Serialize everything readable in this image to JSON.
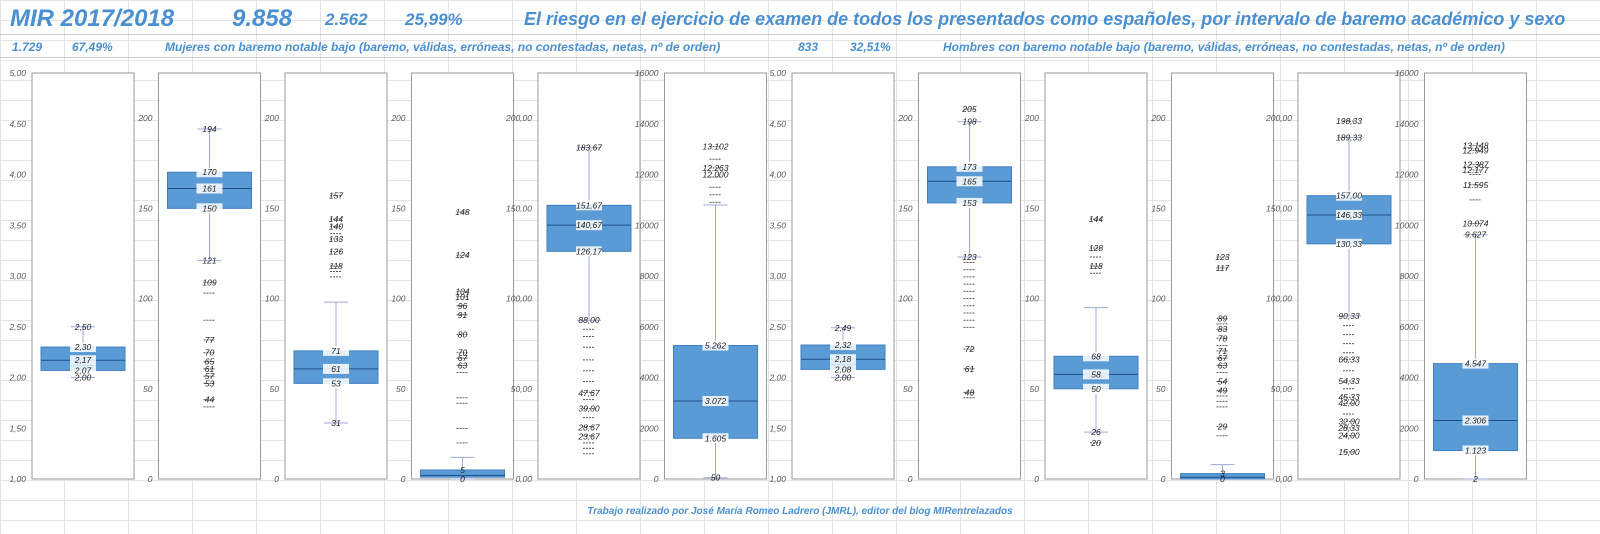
{
  "header": {
    "exam": "MIR 2017/2018",
    "total": "9.858",
    "count": "2.562",
    "percent": "25,99%",
    "title": "El riesgo en el ejercicio de examen de todos los presentados como españoles, por intervalo de baremo académico y sexo"
  },
  "women": {
    "count": "1.729",
    "percent": "67,49%",
    "subtitle": "Mujeres con baremo notable bajo (baremo, válidas, erróneas, no contestadas, netas, nº de orden)"
  },
  "men": {
    "count": "833",
    "percent": "32,51%",
    "subtitle": "Hombres con baremo notable bajo (baremo, válidas, erróneas, no contestadas, netas, nº de orden)"
  },
  "footer": "Trabajo realizado por José María Romeo Ladrero (JMRL), editor del blog MIRentrelazados",
  "colors": {
    "box": "#5b9bd5",
    "title": "#4a8fd0"
  },
  "chart_data": [
    {
      "type": "box",
      "group": "Mujeres",
      "ylim": [
        1,
        5
      ],
      "yticks": [
        "1,00",
        "1,50",
        "2,00",
        "2,50",
        "3,00",
        "3,50",
        "4,00",
        "4,50",
        "5,00"
      ],
      "q1": 2.07,
      "median": 2.17,
      "q3": 2.3,
      "whisker_low": 2.0,
      "whisker_high": 2.5,
      "labels": [
        "2,50",
        "2,30",
        "2,17",
        "2,07",
        "2,00"
      ],
      "outliers": []
    },
    {
      "type": "box",
      "group": "Mujeres",
      "ylim": [
        0,
        225
      ],
      "yticks": [
        "0",
        "50",
        "100",
        "150",
        "200"
      ],
      "q1": 150,
      "median": 161,
      "q3": 170,
      "whisker_low": 121,
      "whisker_high": 194,
      "labels": [
        "194",
        "170",
        "161",
        "150",
        "121",
        "109",
        "77",
        "70",
        "65",
        "61",
        "57",
        "53",
        "44"
      ],
      "outliers": [
        109,
        103,
        88,
        77,
        70,
        65,
        61,
        57,
        53,
        44,
        40
      ]
    },
    {
      "type": "box",
      "group": "Mujeres",
      "ylim": [
        0,
        225
      ],
      "yticks": [
        "0",
        "50",
        "100",
        "150",
        "200"
      ],
      "q1": 53,
      "median": 61,
      "q3": 71,
      "whisker_low": 31,
      "whisker_high": 98,
      "labels": [
        "157",
        "144",
        "140",
        "133",
        "126",
        "118",
        "71",
        "61",
        "53",
        "31"
      ],
      "outliers": [
        157,
        144,
        140,
        136,
        133,
        126,
        118,
        115,
        112
      ]
    },
    {
      "type": "box",
      "group": "Mujeres",
      "ylim": [
        0,
        225
      ],
      "yticks": [
        "0",
        "50",
        "100",
        "150",
        "200"
      ],
      "q1": 1,
      "median": 2,
      "q3": 5,
      "whisker_low": 0,
      "whisker_high": 12,
      "labels": [
        "148",
        "124",
        "104",
        "101",
        "96",
        "91",
        "80",
        "70",
        "67",
        "63",
        "5",
        "0"
      ],
      "outliers": [
        148,
        124,
        104,
        101,
        96,
        91,
        80,
        70,
        67,
        63,
        59,
        45,
        42,
        28,
        20
      ]
    },
    {
      "type": "box",
      "group": "Mujeres",
      "ylim": [
        0,
        225
      ],
      "yticks": [
        "0,00",
        "50,00",
        "100,00",
        "150,00",
        "200,00"
      ],
      "q1": 126.17,
      "median": 140.67,
      "q3": 151.67,
      "whisker_low": 88,
      "whisker_high": 183.67,
      "labels": [
        "183,67",
        "151,67",
        "140,67",
        "126,17",
        "88,00",
        "47,67",
        "39,00",
        "28,67",
        "23,67"
      ],
      "outliers": [
        83,
        79,
        73,
        66,
        60,
        54,
        48,
        44,
        39,
        34,
        29,
        24,
        20,
        17,
        14
      ]
    },
    {
      "type": "box",
      "group": "Mujeres",
      "ylim": [
        0,
        16000
      ],
      "yticks": [
        "0",
        "2000",
        "4000",
        "6000",
        "8000",
        "10000",
        "12000",
        "14000",
        "16000"
      ],
      "q1": 1605,
      "median": 3072,
      "q3": 5262,
      "whisker_low": 50,
      "whisker_high": 10800,
      "labels": [
        "13.102",
        "12.000",
        "12.263",
        "5.262",
        "3.072",
        "1.605",
        "50"
      ],
      "outliers": [
        13102,
        12600,
        12263,
        11900,
        11500,
        11200,
        10900
      ]
    },
    {
      "type": "box",
      "group": "Hombres",
      "ylim": [
        1,
        5
      ],
      "yticks": [
        "1,00",
        "1,50",
        "2,00",
        "2,50",
        "3,00",
        "3,50",
        "4,00",
        "4,50",
        "5,00"
      ],
      "q1": 2.08,
      "median": 2.18,
      "q3": 2.32,
      "whisker_low": 2.0,
      "whisker_high": 2.49,
      "labels": [
        "2,49",
        "2,32",
        "2,18",
        "2,08",
        "2,00"
      ],
      "outliers": []
    },
    {
      "type": "box",
      "group": "Hombres",
      "ylim": [
        0,
        225
      ],
      "yticks": [
        "0",
        "50",
        "100",
        "150",
        "200"
      ],
      "q1": 153,
      "median": 165,
      "q3": 173,
      "whisker_low": 123,
      "whisker_high": 198,
      "labels": [
        "205",
        "198",
        "173",
        "165",
        "153",
        "123",
        "72",
        "61",
        "48"
      ],
      "outliers": [
        205,
        120,
        116,
        112,
        108,
        104,
        100,
        96,
        92,
        88,
        84,
        72,
        61,
        48,
        45
      ]
    },
    {
      "type": "box",
      "group": "Hombres",
      "ylim": [
        0,
        225
      ],
      "yticks": [
        "0",
        "50",
        "100",
        "150",
        "200"
      ],
      "q1": 50,
      "median": 58,
      "q3": 68,
      "whisker_low": 26,
      "whisker_high": 95,
      "labels": [
        "144",
        "128",
        "118",
        "68",
        "58",
        "50",
        "26",
        "20"
      ],
      "outliers": [
        144,
        128,
        123,
        118,
        114,
        20
      ]
    },
    {
      "type": "box",
      "group": "Hombres",
      "ylim": [
        0,
        225
      ],
      "yticks": [
        "0",
        "50",
        "100",
        "150",
        "200"
      ],
      "q1": 0,
      "median": 1,
      "q3": 3,
      "whisker_low": 0,
      "whisker_high": 8,
      "labels": [
        "123",
        "117",
        "89",
        "83",
        "78",
        "71",
        "67",
        "63",
        "54",
        "49",
        "29",
        "3",
        "0"
      ],
      "outliers": [
        123,
        117,
        89,
        86,
        83,
        78,
        74,
        71,
        67,
        63,
        59,
        54,
        49,
        46,
        43,
        40,
        29,
        24
      ]
    },
    {
      "type": "box",
      "group": "Hombres",
      "ylim": [
        0,
        225
      ],
      "yticks": [
        "0,00",
        "50,00",
        "100,00",
        "150,00",
        "200,00"
      ],
      "q1": 130.33,
      "median": 146.33,
      "q3": 157,
      "whisker_low": 90.33,
      "whisker_high": 189.33,
      "labels": [
        "198,33",
        "189,33",
        "157,00",
        "146,33",
        "130,33",
        "90,33",
        "66,33",
        "54,33",
        "45,33",
        "42,00",
        "32,00",
        "28,33",
        "24,00",
        "15,00"
      ],
      "outliers": [
        198.33,
        85,
        80,
        75,
        70,
        66.33,
        60,
        54.33,
        50,
        45.33,
        42,
        36,
        32,
        28.33,
        24,
        15
      ]
    },
    {
      "type": "box",
      "group": "Hombres",
      "ylim": [
        0,
        16000
      ],
      "yticks": [
        "0",
        "2000",
        "4000",
        "6000",
        "8000",
        "10000",
        "12000",
        "14000",
        "16000"
      ],
      "q1": 1123,
      "median": 2306,
      "q3": 4547,
      "whisker_low": 2,
      "whisker_high": 9627,
      "labels": [
        "13.148",
        "12.949",
        "12.387",
        "12.177",
        "11.595",
        "10.074",
        "9.627",
        "4.547",
        "2.306",
        "1.123",
        "2"
      ],
      "outliers": [
        13148,
        12949,
        12387,
        12177,
        12000,
        11595,
        11000,
        10074
      ]
    }
  ]
}
